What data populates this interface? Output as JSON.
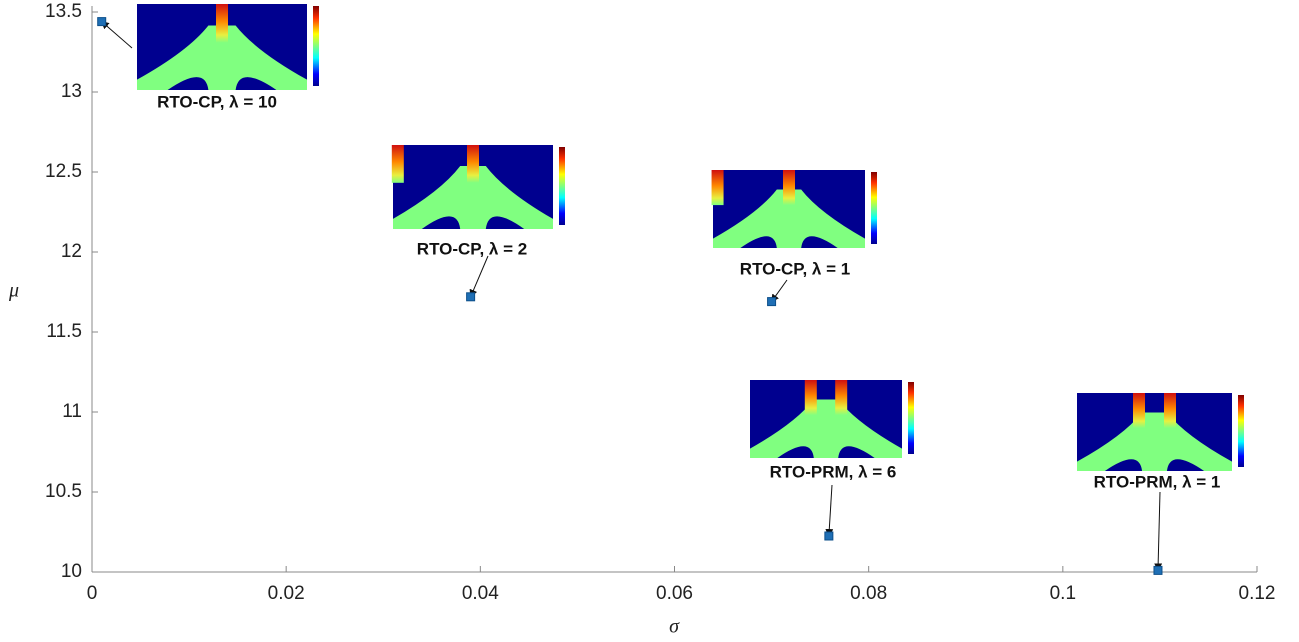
{
  "chart_data": {
    "type": "scatter",
    "xlabel": "σ",
    "ylabel": "μ",
    "x": [
      0.001,
      0.039,
      0.07,
      0.0759,
      0.1098
    ],
    "y": [
      13.44,
      11.72,
      11.69,
      10.225,
      10.01
    ],
    "annotations": [
      "RTO-CP, λ = 10",
      "RTO-CP, λ = 2",
      "RTO-CP, λ = 1",
      "RTO-PRM, λ = 6",
      "RTO-PRM, λ = 1"
    ],
    "color": "#1f6fb5",
    "xlim": [
      0,
      0.12
    ],
    "ylim": [
      10,
      13.5
    ],
    "xticks": [
      0,
      0.02,
      0.04,
      0.06,
      0.08,
      0.1,
      0.12
    ],
    "yticks": [
      10,
      10.5,
      11,
      11.5,
      12,
      12.5,
      13,
      13.5
    ]
  }
}
